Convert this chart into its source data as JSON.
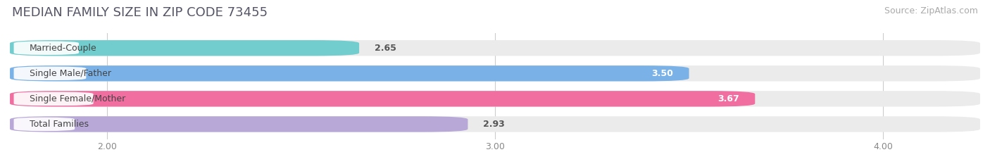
{
  "title": "MEDIAN FAMILY SIZE IN ZIP CODE 73455",
  "source": "Source: ZipAtlas.com",
  "categories": [
    "Married-Couple",
    "Single Male/Father",
    "Single Female/Mother",
    "Total Families"
  ],
  "values": [
    2.65,
    3.5,
    3.67,
    2.93
  ],
  "bar_colors": [
    "#72cece",
    "#7ab2e8",
    "#f06ea0",
    "#b8a8d8"
  ],
  "value_inside": [
    false,
    true,
    true,
    false
  ],
  "value_colors_inside": [
    "#ffffff",
    "#ffffff",
    "#ffffff",
    "#ffffff"
  ],
  "value_colors_outside": [
    "#555555",
    "#555555",
    "#555555",
    "#555555"
  ],
  "xlim_start": 1.75,
  "xlim_end": 4.25,
  "xticks": [
    2.0,
    3.0,
    4.0
  ],
  "xtick_labels": [
    "2.00",
    "3.00",
    "4.00"
  ],
  "bar_height": 0.62,
  "background_color": "#ffffff",
  "bar_bg_color": "#ebebeb",
  "title_fontsize": 13,
  "source_fontsize": 9,
  "label_fontsize": 9,
  "value_fontsize": 9,
  "tick_fontsize": 9
}
